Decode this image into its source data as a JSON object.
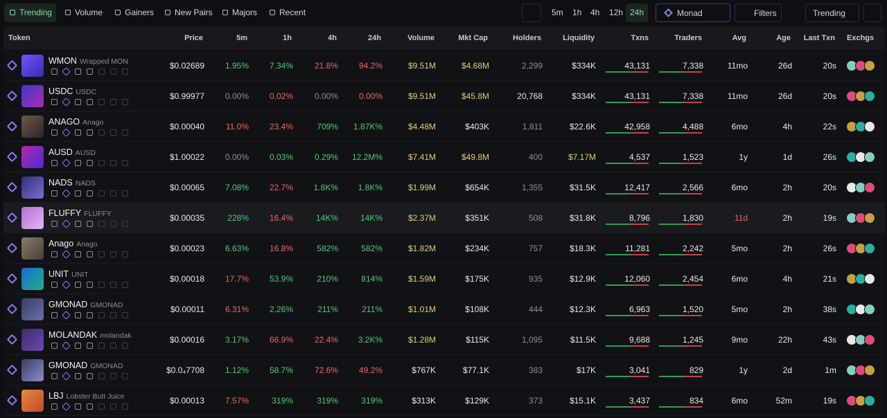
{
  "toolbar": {
    "tabs": [
      "Trending",
      "Volume",
      "Gainers",
      "New Pairs",
      "Majors",
      "Recent"
    ],
    "active_tab": 0,
    "timeframes": [
      "5m",
      "1h",
      "4h",
      "12h",
      "24h"
    ],
    "active_timeframe": 4,
    "chain": "Monad",
    "filters": "Filters",
    "sort": "Trending"
  },
  "table": {
    "columns": [
      "Token",
      "Price",
      "5m",
      "1h",
      "4h",
      "24h",
      "Volume",
      "Mkt Cap",
      "Holders",
      "Liquidity",
      "Txns",
      "Traders",
      "Avg",
      "Age",
      "Last Txn",
      "Exchgs"
    ],
    "hovered_row": 5,
    "rows": [
      {
        "symbol": "WMON",
        "name": "Wrapped MON",
        "price": "$0.02689",
        "changes": [
          {
            "text": "1.95%",
            "dir": "up"
          },
          {
            "text": "7.34%",
            "dir": "up"
          },
          {
            "text": "21.8%",
            "dir": "down"
          },
          {
            "text": "94.2%",
            "dir": "down"
          }
        ],
        "volume": "$9.51M",
        "mcap": "$4.68M",
        "holders": "2,299",
        "liquidity": "$334K",
        "txns": "43,131",
        "traders": "7,338",
        "avg": "11mo",
        "age": "26d",
        "last_txn": "20s",
        "highlight": [
          "volume",
          "mcap"
        ]
      },
      {
        "symbol": "USDC",
        "name": "USDC",
        "price": "$0.99977",
        "changes": [
          {
            "text": "0.00%",
            "dir": "flat"
          },
          {
            "text": "0.02%",
            "dir": "down"
          },
          {
            "text": "0.00%",
            "dir": "flat"
          },
          {
            "text": "0.00%",
            "dir": "down"
          }
        ],
        "volume": "$9.51M",
        "mcap": "$45.8M",
        "holders": "20,768",
        "liquidity": "$334K",
        "txns": "43,131",
        "traders": "7,338",
        "avg": "11mo",
        "age": "26d",
        "last_txn": "20s",
        "highlight": [
          "volume",
          "mcap",
          "holders"
        ]
      },
      {
        "symbol": "ANAGO",
        "name": "Anago",
        "price": "$0.00040",
        "changes": [
          {
            "text": "11.0%",
            "dir": "down"
          },
          {
            "text": "23.4%",
            "dir": "down"
          },
          {
            "text": "709%",
            "dir": "up"
          },
          {
            "text": "1.87K%",
            "dir": "up"
          }
        ],
        "volume": "$4.48M",
        "mcap": "$403K",
        "holders": "1,811",
        "liquidity": "$22.6K",
        "txns": "42,958",
        "traders": "4,488",
        "avg": "6mo",
        "age": "4h",
        "last_txn": "22s",
        "highlight": [
          "volume"
        ]
      },
      {
        "symbol": "AUSD",
        "name": "AUSD",
        "price": "$1.00022",
        "changes": [
          {
            "text": "0.00%",
            "dir": "flat"
          },
          {
            "text": "0.03%",
            "dir": "up"
          },
          {
            "text": "0.29%",
            "dir": "up"
          },
          {
            "text": "12.2M%",
            "dir": "up"
          }
        ],
        "volume": "$7.41M",
        "mcap": "$49.8M",
        "holders": "400",
        "liquidity": "$7.17M",
        "txns": "4,537",
        "traders": "1,523",
        "avg": "1y",
        "age": "1d",
        "last_txn": "26s",
        "highlight": [
          "volume",
          "mcap",
          "liquidity"
        ]
      },
      {
        "symbol": "NADS",
        "name": "NADS",
        "price": "$0.00065",
        "changes": [
          {
            "text": "7.08%",
            "dir": "up"
          },
          {
            "text": "22.7%",
            "dir": "down"
          },
          {
            "text": "1.8K%",
            "dir": "up"
          },
          {
            "text": "1.8K%",
            "dir": "up"
          }
        ],
        "volume": "$1.99M",
        "mcap": "$654K",
        "holders": "1,355",
        "liquidity": "$31.5K",
        "txns": "12,417",
        "traders": "2,566",
        "avg": "6mo",
        "age": "2h",
        "last_txn": "20s",
        "highlight": [
          "volume"
        ]
      },
      {
        "symbol": "FLUFFY",
        "name": "FLUFFY",
        "price": "$0.00035",
        "changes": [
          {
            "text": "228%",
            "dir": "up"
          },
          {
            "text": "16.4%",
            "dir": "down"
          },
          {
            "text": "14K%",
            "dir": "up"
          },
          {
            "text": "14K%",
            "dir": "up"
          }
        ],
        "volume": "$2.37M",
        "mcap": "$351K",
        "holders": "508",
        "liquidity": "$31.8K",
        "txns": "8,796",
        "traders": "1,830",
        "avg": "11d",
        "age": "2h",
        "last_txn": "19s",
        "highlight": [
          "volume",
          "avg"
        ]
      },
      {
        "symbol": "Anago",
        "name": "Anago",
        "price": "$0.00023",
        "changes": [
          {
            "text": "6.63%",
            "dir": "up"
          },
          {
            "text": "16.8%",
            "dir": "down"
          },
          {
            "text": "582%",
            "dir": "up"
          },
          {
            "text": "582%",
            "dir": "up"
          }
        ],
        "volume": "$1.82M",
        "mcap": "$234K",
        "holders": "757",
        "liquidity": "$18.3K",
        "txns": "11,281",
        "traders": "2,242",
        "avg": "5mo",
        "age": "2h",
        "last_txn": "26s",
        "highlight": [
          "volume"
        ]
      },
      {
        "symbol": "UNIT",
        "name": "UNIT",
        "price": "$0.00018",
        "changes": [
          {
            "text": "17.7%",
            "dir": "down"
          },
          {
            "text": "53.9%",
            "dir": "up"
          },
          {
            "text": "210%",
            "dir": "up"
          },
          {
            "text": "814%",
            "dir": "up"
          }
        ],
        "volume": "$1.59M",
        "mcap": "$175K",
        "holders": "935",
        "liquidity": "$12.9K",
        "txns": "12,060",
        "traders": "2,454",
        "avg": "6mo",
        "age": "4h",
        "last_txn": "21s",
        "highlight": [
          "volume"
        ]
      },
      {
        "symbol": "GMONAD",
        "name": "GMONAD",
        "price": "$0.00011",
        "changes": [
          {
            "text": "6.31%",
            "dir": "down"
          },
          {
            "text": "2.26%",
            "dir": "up"
          },
          {
            "text": "211%",
            "dir": "up"
          },
          {
            "text": "211%",
            "dir": "up"
          }
        ],
        "volume": "$1.01M",
        "mcap": "$108K",
        "holders": "444",
        "liquidity": "$12.3K",
        "txns": "6,963",
        "traders": "1,520",
        "avg": "5mo",
        "age": "2h",
        "last_txn": "38s",
        "highlight": [
          "volume"
        ]
      },
      {
        "symbol": "MOLANDAK",
        "name": "molandak",
        "price": "$0.00016",
        "changes": [
          {
            "text": "3.17%",
            "dir": "up"
          },
          {
            "text": "66.9%",
            "dir": "down"
          },
          {
            "text": "22.4%",
            "dir": "down"
          },
          {
            "text": "3.2K%",
            "dir": "up"
          }
        ],
        "volume": "$1.28M",
        "mcap": "$115K",
        "holders": "1,095",
        "liquidity": "$11.5K",
        "txns": "9,688",
        "traders": "1,245",
        "avg": "9mo",
        "age": "22h",
        "last_txn": "43s",
        "highlight": [
          "volume"
        ]
      },
      {
        "symbol": "GMONAD",
        "name": "GMONAD",
        "price": "$0.0₄7708",
        "changes": [
          {
            "text": "1.12%",
            "dir": "up"
          },
          {
            "text": "58.7%",
            "dir": "up"
          },
          {
            "text": "72.6%",
            "dir": "down"
          },
          {
            "text": "49.2%",
            "dir": "down"
          }
        ],
        "volume": "$767K",
        "mcap": "$77.1K",
        "holders": "383",
        "liquidity": "$17K",
        "txns": "3,041",
        "traders": "829",
        "avg": "1y",
        "age": "2d",
        "last_txn": "1m",
        "highlight": []
      },
      {
        "symbol": "LBJ",
        "name": "Lobster Butt Juice",
        "price": "$0.00013",
        "changes": [
          {
            "text": "7.57%",
            "dir": "down"
          },
          {
            "text": "319%",
            "dir": "up"
          },
          {
            "text": "319%",
            "dir": "up"
          },
          {
            "text": "319%",
            "dir": "up"
          }
        ],
        "volume": "$313K",
        "mcap": "$129K",
        "holders": "373",
        "liquidity": "$15.1K",
        "txns": "3,437",
        "traders": "834",
        "avg": "6mo",
        "age": "52m",
        "last_txn": "19s",
        "highlight": []
      }
    ]
  }
}
